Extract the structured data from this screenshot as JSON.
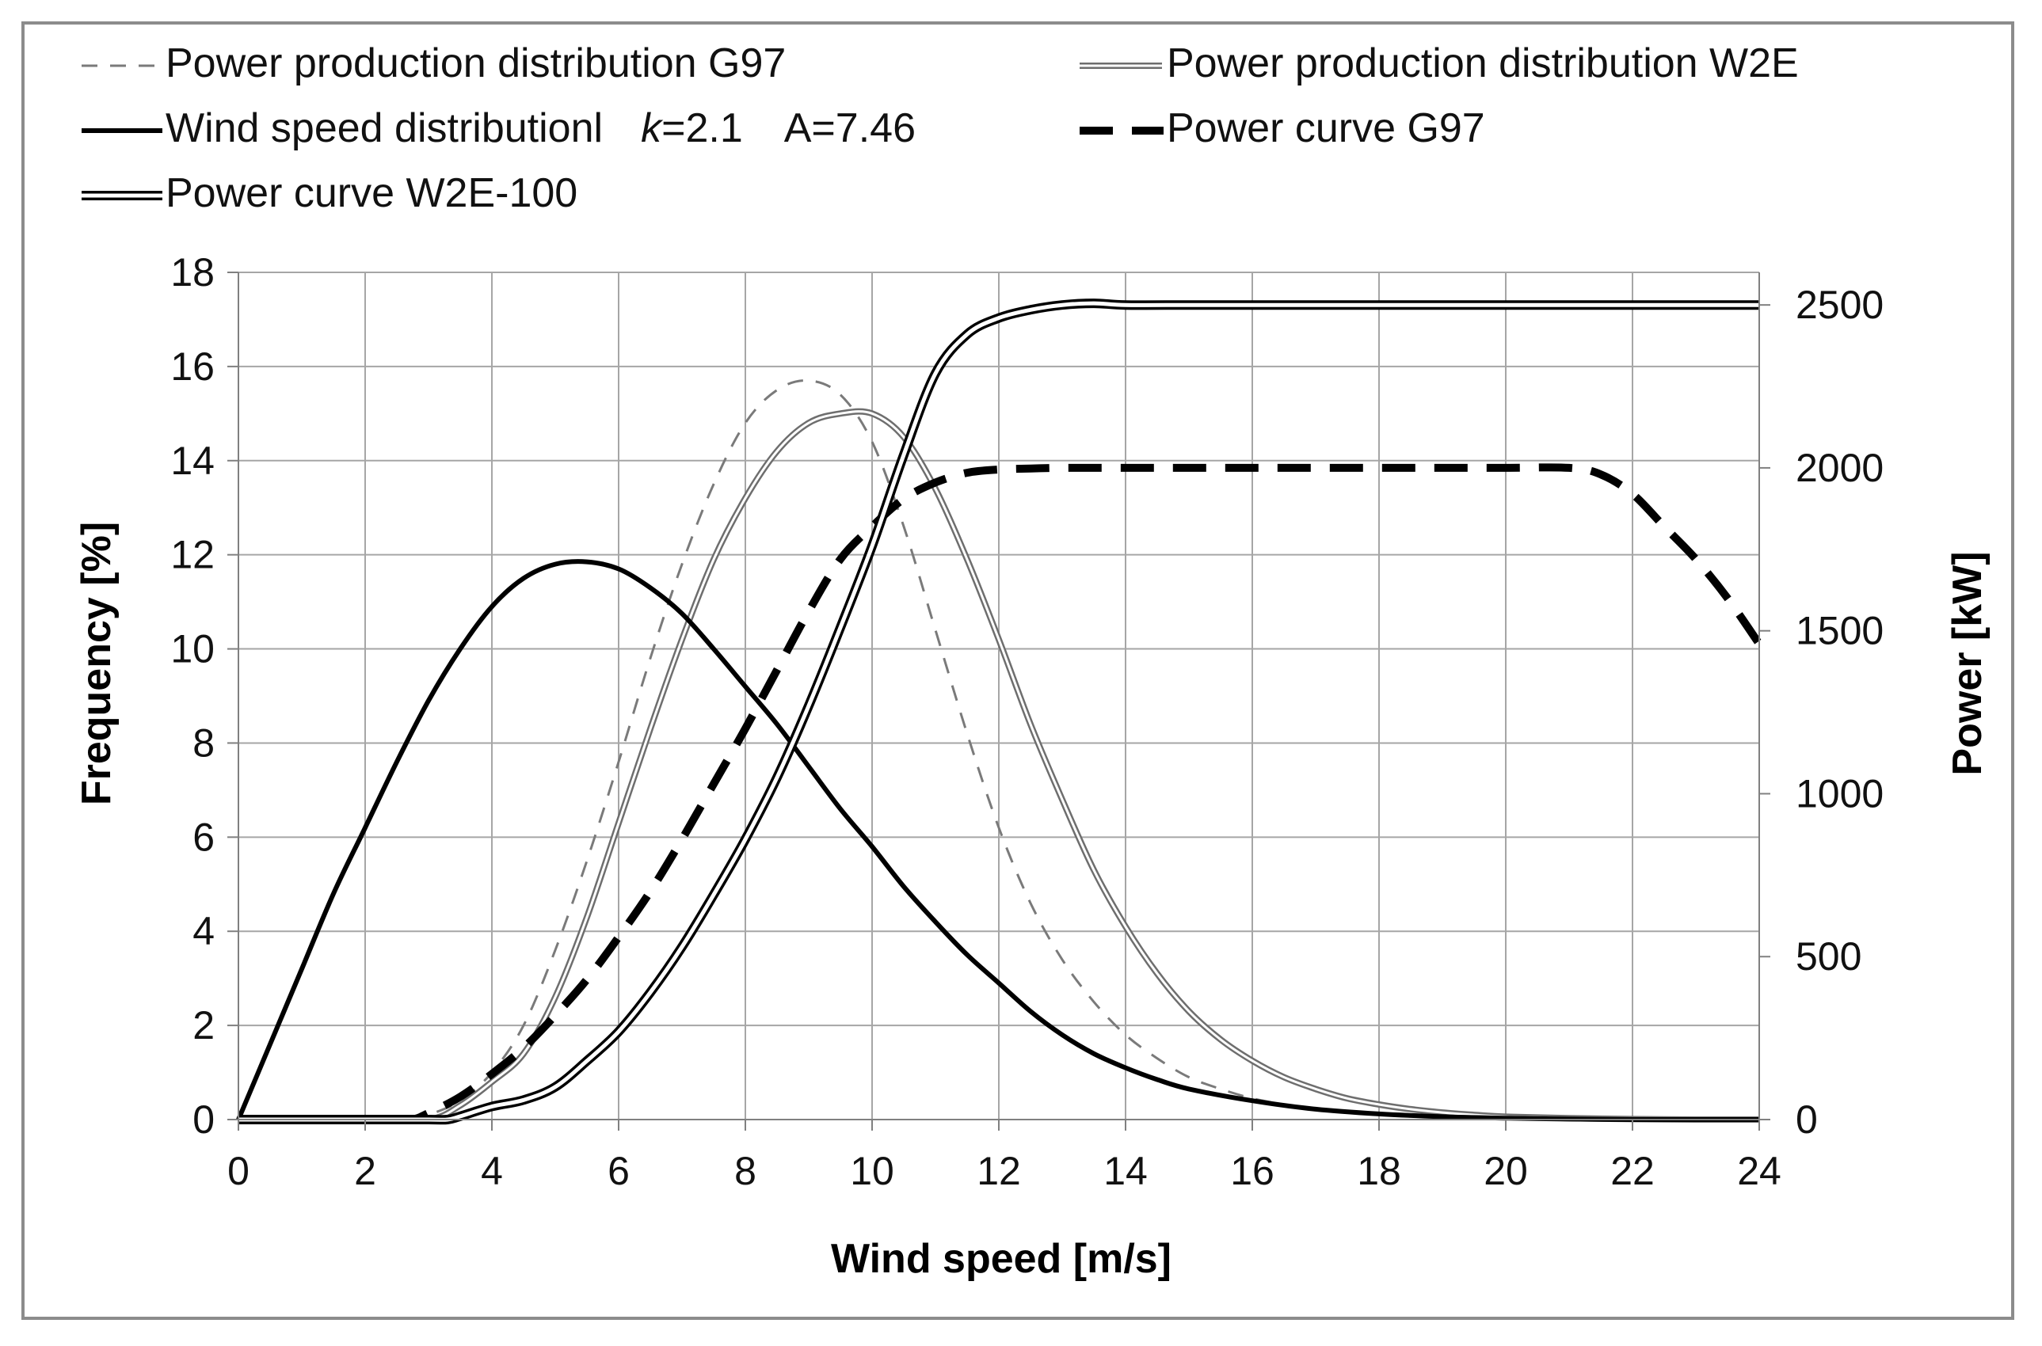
{
  "chart_data": {
    "type": "line",
    "xlabel": "Wind speed [m/s]",
    "ylabel": "Frequency [%]",
    "y2label": "Power [kW]",
    "xlim": [
      0,
      24
    ],
    "ylim": [
      0,
      18
    ],
    "y2lim": [
      0,
      2600
    ],
    "xticks": [
      "0",
      "2",
      "4",
      "6",
      "8",
      "10",
      "12",
      "14",
      "16",
      "18",
      "20",
      "22",
      "24"
    ],
    "yticks": [
      "0",
      "2",
      "4",
      "6",
      "8",
      "10",
      "12",
      "14",
      "16",
      "18"
    ],
    "y2ticks": [
      "0",
      "500",
      "1000",
      "1500",
      "2000",
      "2500"
    ],
    "grid": true,
    "legend_position": "top",
    "legend": {
      "entry1": "Power production distribution G97",
      "entry2": "Power production distribution W2E",
      "entry3_main": "Wind speed distributionl",
      "entry3_k_symbol": "k",
      "entry3_k_value": "=2.1",
      "entry3_a": "A=7.46",
      "entry4": "Power curve G97",
      "entry5": "Power curve W2E-100"
    },
    "series": [
      {
        "name": "Power production distribution G97",
        "axis": "left",
        "style": "thin-dashed",
        "x": [
          0,
          1,
          2,
          2.7,
          3,
          3.5,
          4,
          4.5,
          5,
          5.5,
          6,
          6.5,
          7,
          7.5,
          8,
          8.5,
          9,
          9.5,
          10,
          10.5,
          11,
          11.5,
          12,
          12.5,
          13,
          13.5,
          14,
          14.5,
          15,
          15.5,
          16,
          16.5,
          17,
          17.5,
          18,
          18.5,
          19,
          19.5,
          20,
          21,
          22,
          23,
          24
        ],
        "values": [
          0,
          0,
          0,
          0,
          0.1,
          0.4,
          1.0,
          2.0,
          3.6,
          5.5,
          7.6,
          9.8,
          11.8,
          13.5,
          14.8,
          15.5,
          15.7,
          15.4,
          14.4,
          12.6,
          10.4,
          8.2,
          6.2,
          4.6,
          3.4,
          2.5,
          1.8,
          1.3,
          0.9,
          0.65,
          0.45,
          0.32,
          0.22,
          0.15,
          0.1,
          0.07,
          0.05,
          0.03,
          0.02,
          0.01,
          0,
          0,
          0
        ]
      },
      {
        "name": "Power production distribution W2E",
        "axis": "left",
        "style": "thin-double",
        "x": [
          0,
          1,
          2,
          3,
          3.5,
          4,
          4.5,
          5,
          5.5,
          6,
          6.5,
          7,
          7.5,
          8,
          8.5,
          9,
          9.5,
          10,
          10.5,
          11,
          11.5,
          12,
          12.5,
          13,
          13.5,
          14,
          14.5,
          15,
          15.5,
          16,
          16.5,
          17,
          17.5,
          18,
          18.5,
          19,
          19.5,
          20,
          21,
          22,
          23,
          24
        ],
        "values": [
          0,
          0,
          0,
          0,
          0.3,
          0.8,
          1.4,
          2.6,
          4.3,
          6.3,
          8.3,
          10.2,
          11.9,
          13.2,
          14.2,
          14.8,
          15.0,
          15.0,
          14.5,
          13.4,
          11.9,
          10.2,
          8.4,
          6.8,
          5.3,
          4.1,
          3.1,
          2.3,
          1.7,
          1.25,
          0.9,
          0.65,
          0.45,
          0.32,
          0.22,
          0.15,
          0.1,
          0.06,
          0.03,
          0.01,
          0,
          0
        ]
      },
      {
        "name": "Wind speed distributionl  k=2.1  A=7.46",
        "axis": "left",
        "style": "thick-solid",
        "x": [
          0,
          0.5,
          1,
          1.5,
          2,
          2.5,
          3,
          3.5,
          4,
          4.5,
          5,
          5.5,
          6,
          6.5,
          7,
          7.5,
          8,
          8.5,
          9,
          9.5,
          10,
          10.5,
          11,
          11.5,
          12,
          12.5,
          13,
          13.5,
          14,
          14.5,
          15,
          16,
          17,
          18,
          19,
          20,
          21,
          22,
          23,
          24
        ],
        "values": [
          0,
          1.6,
          3.2,
          4.8,
          6.2,
          7.6,
          8.9,
          10.0,
          10.9,
          11.5,
          11.8,
          11.85,
          11.7,
          11.3,
          10.75,
          10.0,
          9.2,
          8.4,
          7.5,
          6.6,
          5.8,
          4.95,
          4.2,
          3.5,
          2.9,
          2.3,
          1.8,
          1.4,
          1.1,
          0.85,
          0.65,
          0.4,
          0.22,
          0.12,
          0.06,
          0.03,
          0.01,
          0,
          0,
          0
        ]
      },
      {
        "name": "Power curve G97",
        "axis": "right",
        "style": "thick-dashed",
        "x": [
          0,
          1,
          2,
          2.7,
          3,
          3.5,
          4,
          4.5,
          5,
          5.5,
          6,
          6.5,
          7,
          7.5,
          8,
          8.5,
          9,
          9.5,
          10,
          10.5,
          11,
          11.5,
          12,
          12.5,
          13,
          14,
          15,
          16,
          17,
          18,
          19,
          20,
          21,
          21.5,
          22,
          22.5,
          23,
          23.5,
          24
        ],
        "values": [
          0,
          0,
          0,
          0,
          20,
          70,
          140,
          220,
          320,
          430,
          560,
          700,
          860,
          1030,
          1200,
          1380,
          1560,
          1720,
          1820,
          1905,
          1955,
          1985,
          1995,
          1998,
          2000,
          2000,
          2000,
          2000,
          2000,
          2000,
          2000,
          2000,
          2000,
          1980,
          1920,
          1820,
          1720,
          1600,
          1460
        ]
      },
      {
        "name": "Power curve W2E-100",
        "axis": "right",
        "style": "thick-double",
        "x": [
          0,
          1,
          2,
          3,
          3.3,
          3.5,
          4,
          4.5,
          5,
          5.5,
          6,
          6.5,
          7,
          7.5,
          8,
          8.5,
          9,
          9.5,
          10,
          10.5,
          11,
          11.5,
          12,
          12.5,
          13,
          13.5,
          14,
          15,
          16,
          17,
          18,
          19,
          20,
          21,
          22,
          23,
          24
        ],
        "values": [
          0,
          0,
          0,
          0,
          0,
          10,
          40,
          60,
          100,
          180,
          270,
          390,
          530,
          690,
          860,
          1050,
          1270,
          1510,
          1760,
          2040,
          2290,
          2410,
          2460,
          2485,
          2500,
          2505,
          2500,
          2500,
          2500,
          2500,
          2500,
          2500,
          2500,
          2500,
          2500,
          2500,
          2500
        ]
      }
    ]
  }
}
